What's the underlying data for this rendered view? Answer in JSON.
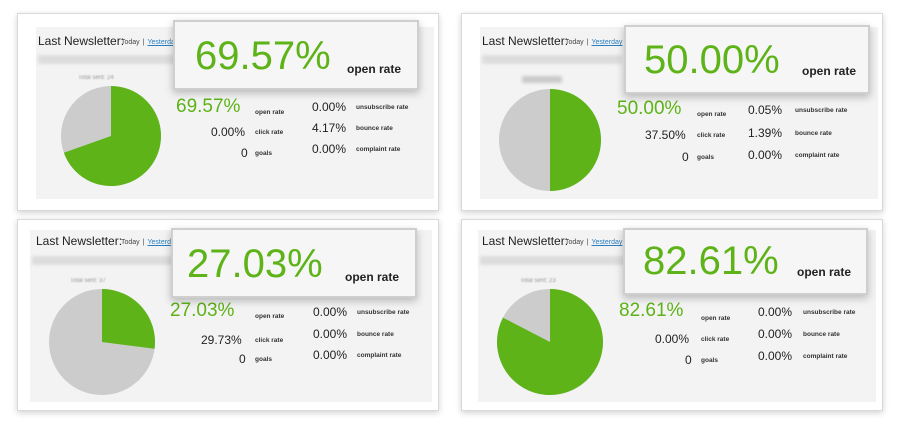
{
  "colors": {
    "accent": "#5db317",
    "pie_rest": "#cccccc",
    "link": "#2a7fc0"
  },
  "cards": [
    {
      "title": "Last Newsletter:",
      "links": {
        "today": "Today",
        "yesterday": "Yesterday",
        "extra": "L"
      },
      "blurred_stat": "Total sent: 24",
      "open_rate_fraction": 0.6957,
      "callout": {
        "percent": "69.57%",
        "label": "open rate"
      },
      "stats": {
        "open": "69.57%",
        "open_label": "open rate",
        "click": "0.00%",
        "click_label": "click rate",
        "goals": "0",
        "goals_label": "goals",
        "unsub": "0.00%",
        "unsub_label": "unsubscribe rate",
        "bounce": "4.17%",
        "bounce_label": "bounce rate",
        "complaint": "0.00%",
        "complaint_label": "complaint rate"
      }
    },
    {
      "title": "Last Newsletter:",
      "links": {
        "today": "Today",
        "yesterday": "Yesterday",
        "extra": "L"
      },
      "blurred_stat": "",
      "open_rate_fraction": 0.5,
      "callout": {
        "percent": "50.00%",
        "label": "open rate"
      },
      "stats": {
        "open": "50.00%",
        "open_label": "open rate",
        "click": "37.50%",
        "click_label": "click rate",
        "goals": "0",
        "goals_label": "goals",
        "unsub": "0.05%",
        "unsub_label": "unsubscribe rate",
        "bounce": "1.39%",
        "bounce_label": "bounce rate",
        "complaint": "0.00%",
        "complaint_label": "complaint rate"
      }
    },
    {
      "title": "Last Newsletter:",
      "links": {
        "today": "Today",
        "yesterday": "Yesterday",
        "extra": ""
      },
      "blurred_stat": "Total sent: 37",
      "open_rate_fraction": 0.2703,
      "callout": {
        "percent": "27.03%",
        "label": "open rate"
      },
      "stats": {
        "open": "27.03%",
        "open_label": "open rate",
        "click": "29.73%",
        "click_label": "click rate",
        "goals": "0",
        "goals_label": "goals",
        "unsub": "0.00%",
        "unsub_label": "unsubscribe rate",
        "bounce": "0.00%",
        "bounce_label": "bounce rate",
        "complaint": "0.00%",
        "complaint_label": "complaint rate"
      }
    },
    {
      "title": "Last Newsletter:",
      "links": {
        "today": "Today",
        "yesterday": "Yesterday",
        "extra": ""
      },
      "blurred_stat": "Total sent: 23",
      "open_rate_fraction": 0.8261,
      "callout": {
        "percent": "82.61%",
        "label": "open rate"
      },
      "stats": {
        "open": "82.61%",
        "open_label": "open rate",
        "click": "0.00%",
        "click_label": "click rate",
        "goals": "0",
        "goals_label": "goals",
        "unsub": "0.00%",
        "unsub_label": "unsubscribe rate",
        "bounce": "0.00%",
        "bounce_label": "bounce rate",
        "complaint": "0.00%",
        "complaint_label": "complaint rate"
      }
    }
  ]
}
